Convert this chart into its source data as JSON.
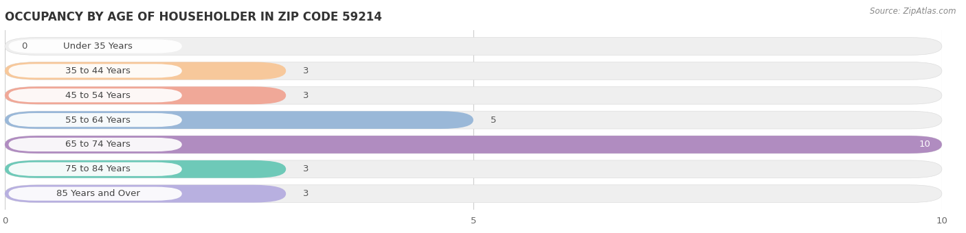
{
  "title": "OCCUPANCY BY AGE OF HOUSEHOLDER IN ZIP CODE 59214",
  "source": "Source: ZipAtlas.com",
  "categories": [
    "Under 35 Years",
    "35 to 44 Years",
    "45 to 54 Years",
    "55 to 64 Years",
    "65 to 74 Years",
    "75 to 84 Years",
    "85 Years and Over"
  ],
  "values": [
    0,
    3,
    3,
    5,
    10,
    3,
    3
  ],
  "bar_colors": [
    "#f4a7b9",
    "#f7c89b",
    "#f0a898",
    "#9ab8d8",
    "#b08cc0",
    "#6ec9b8",
    "#b8b0e0"
  ],
  "xlim": [
    0,
    10
  ],
  "xticks": [
    0,
    5,
    10
  ],
  "background_color": "#ffffff",
  "bar_bg_color": "#efefef",
  "title_fontsize": 12,
  "label_fontsize": 9.5,
  "value_fontsize": 9.5,
  "bar_height": 0.72,
  "bar_gap": 0.28
}
